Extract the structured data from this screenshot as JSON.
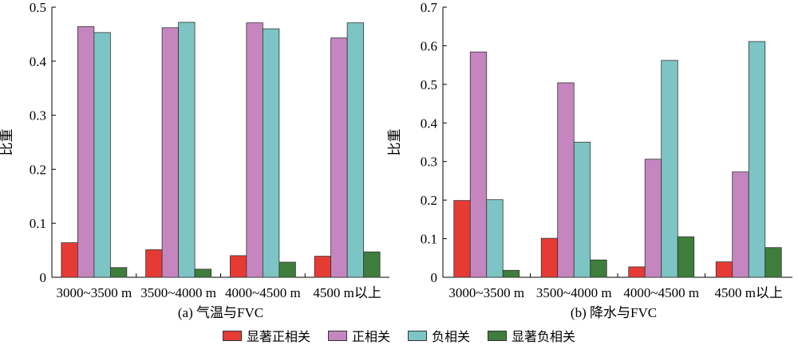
{
  "colors": {
    "显著正相关": "#e63b35",
    "正相关": "#c586c0",
    "负相关": "#7cc5c4",
    "显著负相关": "#3f7d3c",
    "axis": "#000000"
  },
  "legend": {
    "items": [
      {
        "label": "显著正相关",
        "color": "#e63b35"
      },
      {
        "label": "正相关",
        "color": "#c586c0"
      },
      {
        "label": "负相关",
        "color": "#7cc5c4"
      },
      {
        "label": "显著负相关",
        "color": "#3f7d3c"
      }
    ]
  },
  "chart_data": [
    {
      "type": "bar",
      "caption": "(a) 气温与FVC",
      "ylabel": "比重",
      "xlabel": "",
      "categories": [
        "3000~3500 m",
        "3500~4000 m",
        "4000~4500 m",
        "4500 m以上"
      ],
      "ylim": [
        0,
        0.5
      ],
      "yticks": [
        "0",
        "0.1",
        "0.2",
        "0.3",
        "0.4",
        "0.5"
      ],
      "series": [
        {
          "name": "显著正相关",
          "values": [
            0.064,
            0.051,
            0.04,
            0.039
          ]
        },
        {
          "name": "正相关",
          "values": [
            0.464,
            0.462,
            0.471,
            0.443
          ]
        },
        {
          "name": "负相关",
          "values": [
            0.453,
            0.472,
            0.46,
            0.471
          ]
        },
        {
          "name": "显著负相关",
          "values": [
            0.018,
            0.015,
            0.028,
            0.047
          ]
        }
      ],
      "grid": false,
      "legend_position": "bottom"
    },
    {
      "type": "bar",
      "caption": "(b) 降水与FVC",
      "ylabel": "比重",
      "xlabel": "",
      "categories": [
        "3000~3500 m",
        "3500~4000 m",
        "4000~4500 m",
        "4500 m以上"
      ],
      "ylim": [
        0,
        0.7
      ],
      "yticks": [
        "0",
        "0.1",
        "0.2",
        "0.3",
        "0.4",
        "0.5",
        "0.6",
        "0.7"
      ],
      "series": [
        {
          "name": "显著正相关",
          "values": [
            0.199,
            0.101,
            0.027,
            0.04
          ]
        },
        {
          "name": "正相关",
          "values": [
            0.584,
            0.504,
            0.306,
            0.273
          ]
        },
        {
          "name": "负相关",
          "values": [
            0.201,
            0.35,
            0.562,
            0.611
          ]
        },
        {
          "name": "显著负相关",
          "values": [
            0.018,
            0.045,
            0.105,
            0.077
          ]
        }
      ],
      "grid": false,
      "legend_position": "bottom"
    }
  ]
}
